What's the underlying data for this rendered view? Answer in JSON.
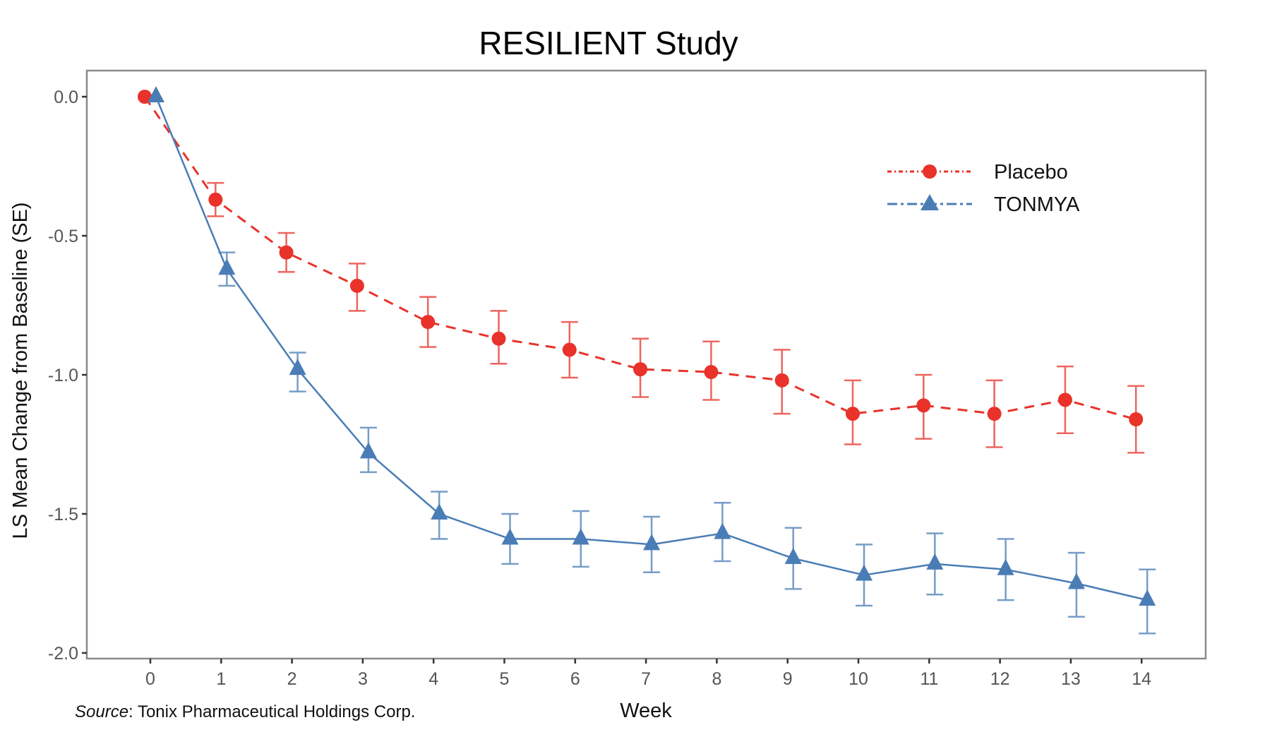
{
  "chart_data": {
    "type": "line",
    "title": "RESILIENT Study",
    "xlabel": "Week",
    "ylabel": "LS Mean Change from Baseline (SE)",
    "x": [
      0,
      1,
      2,
      3,
      4,
      5,
      6,
      7,
      8,
      9,
      10,
      11,
      12,
      13,
      14
    ],
    "x_tick_labels": [
      "0",
      "1",
      "2",
      "3",
      "4",
      "5",
      "6",
      "7",
      "8",
      "9",
      "10",
      "11",
      "12",
      "13",
      "14"
    ],
    "y_ticks": [
      0.0,
      -0.5,
      -1.0,
      -1.5,
      -2.0
    ],
    "y_tick_labels": [
      "0.0",
      "-0.5",
      "-1.0",
      "-1.5",
      "-2.0"
    ],
    "ylim": [
      -2.03,
      0.1
    ],
    "xlim": [
      -0.9,
      14.9
    ],
    "grid": false,
    "legend_position": "top-right",
    "series": [
      {
        "name": "Placebo",
        "color": "#E8322A",
        "line_style": "dashed",
        "marker": "circle",
        "values": [
          0.0,
          -0.37,
          -0.56,
          -0.68,
          -0.81,
          -0.87,
          -0.91,
          -0.98,
          -0.99,
          -1.02,
          -1.14,
          -1.11,
          -1.14,
          -1.09,
          -1.16
        ],
        "se_upper": [
          0.0,
          -0.31,
          -0.49,
          -0.6,
          -0.72,
          -0.77,
          -0.81,
          -0.87,
          -0.88,
          -0.91,
          -1.02,
          -1.0,
          -1.02,
          -0.97,
          -1.04
        ],
        "se_lower": [
          0.0,
          -0.43,
          -0.63,
          -0.77,
          -0.9,
          -0.96,
          -1.01,
          -1.08,
          -1.09,
          -1.14,
          -1.25,
          -1.23,
          -1.26,
          -1.21,
          -1.28
        ]
      },
      {
        "name": "TONMYA",
        "color": "#4A7DB5",
        "line_style": "solid",
        "marker": "triangle",
        "values": [
          0.0,
          -0.62,
          -0.98,
          -1.28,
          -1.5,
          -1.59,
          -1.59,
          -1.61,
          -1.57,
          -1.66,
          -1.72,
          -1.68,
          -1.7,
          -1.75,
          -1.81
        ],
        "se_upper": [
          0.0,
          -0.56,
          -0.92,
          -1.19,
          -1.42,
          -1.5,
          -1.49,
          -1.51,
          -1.46,
          -1.55,
          -1.61,
          -1.57,
          -1.59,
          -1.64,
          -1.7
        ],
        "se_lower": [
          0.0,
          -0.68,
          -1.06,
          -1.35,
          -1.59,
          -1.68,
          -1.69,
          -1.71,
          -1.67,
          -1.77,
          -1.83,
          -1.79,
          -1.81,
          -1.87,
          -1.93
        ]
      }
    ],
    "legend": [
      {
        "label": "Placebo",
        "color": "#E8322A",
        "marker": "circle",
        "line_style": "dotdash"
      },
      {
        "label": "TONMYA",
        "color": "#4A7DB5",
        "marker": "triangle",
        "line_style": "longdash"
      }
    ],
    "source": {
      "prefix": "Source",
      "text": ": Tonix Pharmaceutical Holdings Corp."
    }
  }
}
